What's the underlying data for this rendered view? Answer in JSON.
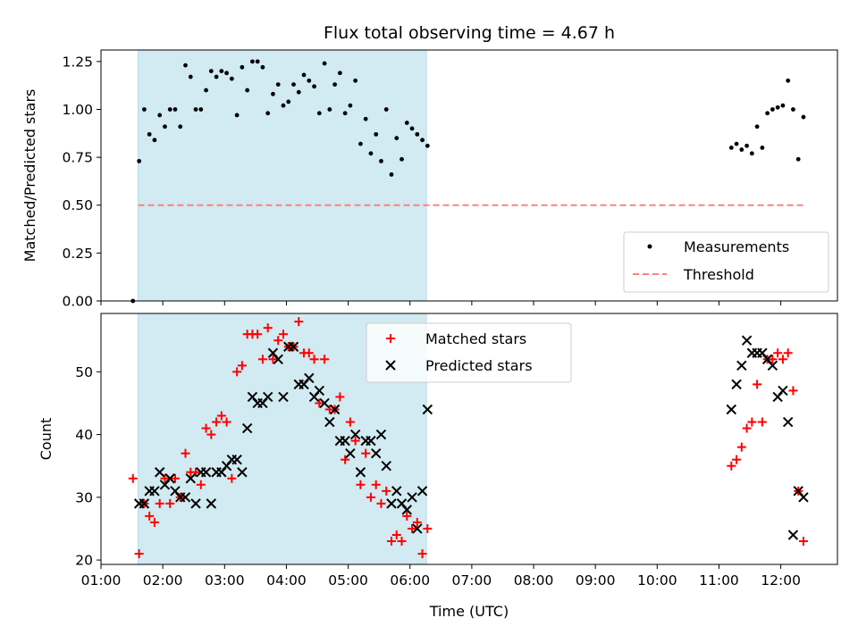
{
  "chart_data": [
    {
      "type": "scatter",
      "title": "Flux total observing time = 4.67 h",
      "xlabel": "",
      "ylabel": "Matched/Predicted stars",
      "xlim": [
        "01:00",
        "12:55"
      ],
      "ylim": [
        0,
        1.31
      ],
      "yticks": [
        "0.00",
        "0.25",
        "0.50",
        "0.75",
        "1.00",
        "1.25"
      ],
      "ytick_values": [
        0,
        0.25,
        0.5,
        0.75,
        1.0,
        1.25
      ],
      "shaded_span": [
        "01:36",
        "06:16"
      ],
      "shaded_color": "#add8e6",
      "threshold": {
        "name": "Threshold",
        "value": 0.5,
        "x": [
          "01:36",
          "12:22"
        ],
        "color": "#ff8080"
      },
      "legend_position": "lower-right",
      "series": [
        {
          "name": "Measurements",
          "color": "#000000",
          "x": [
            "01:31",
            "01:37",
            "01:42",
            "01:47",
            "01:52",
            "01:57",
            "02:02",
            "02:07",
            "02:12",
            "02:17",
            "02:22",
            "02:27",
            "02:32",
            "02:37",
            "02:42",
            "02:47",
            "02:52",
            "02:57",
            "03:02",
            "03:07",
            "03:12",
            "03:17",
            "03:22",
            "03:27",
            "03:32",
            "03:37",
            "03:42",
            "03:47",
            "03:52",
            "03:57",
            "04:02",
            "04:07",
            "04:12",
            "04:17",
            "04:22",
            "04:27",
            "04:32",
            "04:37",
            "04:42",
            "04:47",
            "04:52",
            "04:57",
            "05:02",
            "05:07",
            "05:12",
            "05:17",
            "05:22",
            "05:27",
            "05:32",
            "05:37",
            "05:42",
            "05:47",
            "05:52",
            "05:57",
            "06:02",
            "06:07",
            "06:12",
            "06:17",
            "11:12",
            "11:17",
            "11:22",
            "11:27",
            "11:32",
            "11:37",
            "11:42",
            "11:47",
            "11:52",
            "11:57",
            "12:02",
            "12:07",
            "12:12",
            "12:17",
            "12:22"
          ],
          "values": [
            0.0,
            0.73,
            1.0,
            0.87,
            0.84,
            0.97,
            0.91,
            1.0,
            1.0,
            0.91,
            1.23,
            1.17,
            1.0,
            1.0,
            1.1,
            1.2,
            1.17,
            1.2,
            1.19,
            1.16,
            0.97,
            1.22,
            1.1,
            1.25,
            1.25,
            1.22,
            0.98,
            1.08,
            1.13,
            1.02,
            1.04,
            1.13,
            1.09,
            1.18,
            1.15,
            1.12,
            0.98,
            1.24,
            1.0,
            1.13,
            1.19,
            0.98,
            1.02,
            1.15,
            0.82,
            0.95,
            0.77,
            0.87,
            0.73,
            1.0,
            0.66,
            0.85,
            0.74,
            0.93,
            0.9,
            0.87,
            0.84,
            0.81,
            0.8,
            0.82,
            0.79,
            0.81,
            0.77,
            0.91,
            0.8,
            0.98,
            1.0,
            1.01,
            1.02,
            1.15,
            1.0,
            0.74,
            0.96
          ]
        }
      ]
    },
    {
      "type": "scatter",
      "title": "",
      "xlabel": "Time (UTC)",
      "ylabel": "Count",
      "xlim": [
        "01:00",
        "12:55"
      ],
      "ylim": [
        19.3,
        59.3
      ],
      "yticks": [
        "20",
        "30",
        "40",
        "50"
      ],
      "ytick_values": [
        20,
        30,
        40,
        50
      ],
      "xticks": [
        "01:00",
        "02:00",
        "03:00",
        "04:00",
        "05:00",
        "06:00",
        "07:00",
        "08:00",
        "09:00",
        "10:00",
        "11:00",
        "12:00"
      ],
      "shaded_span": [
        "01:36",
        "06:16"
      ],
      "shaded_color": "#add8e6",
      "legend_position": "upper-center",
      "series": [
        {
          "name": "Matched stars",
          "color": "#ff0000",
          "marker": "plus",
          "x": [
            "01:31",
            "01:37",
            "01:42",
            "01:47",
            "01:52",
            "01:57",
            "02:02",
            "02:07",
            "02:12",
            "02:17",
            "02:22",
            "02:27",
            "02:32",
            "02:37",
            "02:42",
            "02:47",
            "02:52",
            "02:57",
            "03:02",
            "03:07",
            "03:12",
            "03:17",
            "03:22",
            "03:27",
            "03:32",
            "03:37",
            "03:42",
            "03:47",
            "03:52",
            "03:57",
            "04:02",
            "04:07",
            "04:12",
            "04:17",
            "04:22",
            "04:27",
            "04:32",
            "04:37",
            "04:42",
            "04:47",
            "04:52",
            "04:57",
            "05:02",
            "05:07",
            "05:12",
            "05:17",
            "05:22",
            "05:27",
            "05:32",
            "05:37",
            "05:42",
            "05:47",
            "05:52",
            "05:57",
            "06:02",
            "06:07",
            "06:12",
            "06:17",
            "11:12",
            "11:17",
            "11:22",
            "11:27",
            "11:32",
            "11:37",
            "11:42",
            "11:47",
            "11:52",
            "11:57",
            "12:02",
            "12:07",
            "12:12",
            "12:17",
            "12:22"
          ],
          "values": [
            33,
            21,
            29,
            27,
            26,
            29,
            33,
            29,
            33,
            30,
            37,
            34,
            34,
            32,
            41,
            40,
            42,
            43,
            42,
            33,
            50,
            51,
            56,
            56,
            56,
            52,
            57,
            52,
            55,
            56,
            54,
            54,
            58,
            53,
            53,
            52,
            45,
            52,
            44,
            44,
            46,
            36,
            42,
            39,
            32,
            37,
            30,
            32,
            29,
            31,
            23,
            24,
            23,
            27,
            25,
            26,
            21,
            25,
            35,
            36,
            38,
            41,
            42,
            48,
            42,
            52,
            52,
            53,
            52,
            53,
            47,
            31,
            23
          ]
        },
        {
          "name": "Predicted stars",
          "color": "#000000",
          "marker": "x",
          "x": [
            "01:37",
            "01:42",
            "01:47",
            "01:52",
            "01:57",
            "02:02",
            "02:07",
            "02:12",
            "02:17",
            "02:22",
            "02:27",
            "02:32",
            "02:37",
            "02:42",
            "02:47",
            "02:52",
            "02:57",
            "03:02",
            "03:07",
            "03:12",
            "03:17",
            "03:22",
            "03:27",
            "03:32",
            "03:37",
            "03:42",
            "03:47",
            "03:52",
            "03:57",
            "04:02",
            "04:07",
            "04:12",
            "04:17",
            "04:22",
            "04:27",
            "04:32",
            "04:37",
            "04:42",
            "04:47",
            "04:52",
            "04:57",
            "05:02",
            "05:07",
            "05:12",
            "05:17",
            "05:22",
            "05:27",
            "05:32",
            "05:37",
            "05:42",
            "05:47",
            "05:52",
            "05:57",
            "06:02",
            "06:07",
            "06:12",
            "06:17",
            "11:12",
            "11:17",
            "11:22",
            "11:27",
            "11:32",
            "11:37",
            "11:42",
            "11:47",
            "11:52",
            "11:57",
            "12:02",
            "12:07",
            "12:12",
            "12:17",
            "12:22"
          ],
          "values": [
            29,
            29,
            31,
            31,
            34,
            32,
            33,
            31,
            30,
            30,
            33,
            29,
            34,
            34,
            29,
            34,
            34,
            35,
            36,
            36,
            34,
            41,
            46,
            45,
            45,
            46,
            53,
            52,
            46,
            54,
            54,
            48,
            48,
            49,
            46,
            47,
            45,
            42,
            44,
            39,
            39,
            37,
            40,
            34,
            39,
            39,
            37,
            40,
            35,
            29,
            31,
            29,
            28,
            30,
            25,
            31,
            44,
            44,
            48,
            51,
            55,
            53,
            53,
            53,
            52,
            51,
            46,
            47,
            42,
            24,
            31,
            30
          ]
        }
      ]
    }
  ]
}
